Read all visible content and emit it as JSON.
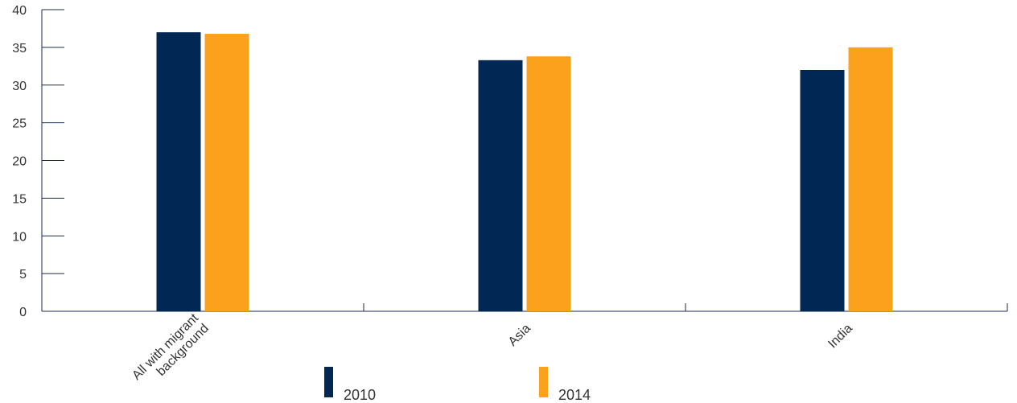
{
  "chart_data": {
    "type": "bar",
    "categories": [
      "All with migrant background",
      "Asia",
      "India"
    ],
    "category_label_lines": [
      [
        "All with migrant",
        "background"
      ],
      [
        "Asia"
      ],
      [
        "India"
      ]
    ],
    "series": [
      {
        "name": "2010",
        "color": "#012754",
        "values": [
          37.0,
          33.3,
          32.0
        ]
      },
      {
        "name": "2014",
        "color": "#FBA11B",
        "values": [
          36.8,
          33.8,
          35.0
        ]
      }
    ],
    "yticks": [
      "0",
      "5",
      "10",
      "15",
      "20",
      "25",
      "30",
      "35",
      "40"
    ],
    "ylim": [
      0,
      40
    ],
    "grid": false,
    "legend_position": "bottom"
  }
}
